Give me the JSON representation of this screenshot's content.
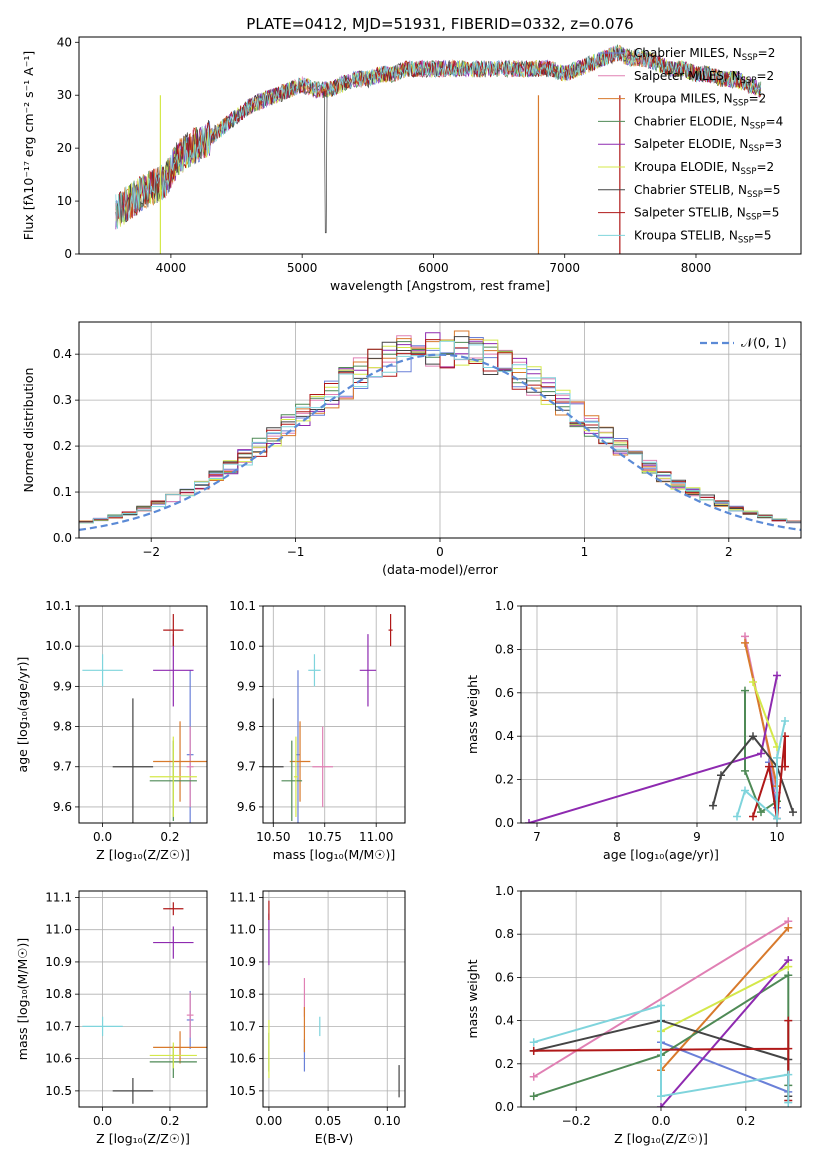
{
  "figure": {
    "title": "PLATE=0412, MJD=51931, FIBERID=0332, z=0.076"
  },
  "colors": {
    "Chabrier MILES": "#6a80d8",
    "Salpeter MILES": "#e080b4",
    "Kroupa MILES": "#d87a2c",
    "Chabrier ELODIE": "#4f8a56",
    "Salpeter ELODIE": "#8e2ab0",
    "Kroupa ELODIE": "#d4e84a",
    "Chabrier STELIB": "#444444",
    "Salpeter STELIB": "#b01818",
    "Kroupa STELIB": "#7fd4dc",
    "normal": "#5b8ad6"
  },
  "chart_data": [
    {
      "id": "spectrum",
      "type": "line",
      "title": "PLATE=0412, MJD=51931, FIBERID=0332, z=0.076",
      "xlabel": "wavelength [Angstrom, rest frame]",
      "ylabel": "Flux [fλ10⁻¹⁷ erg cm⁻² s⁻¹ A⁻¹]",
      "xlim": [
        3300,
        8800
      ],
      "ylim": [
        0,
        41
      ],
      "xticks": [
        4000,
        5000,
        6000,
        7000,
        8000
      ],
      "yticks": [
        0,
        10,
        20,
        30,
        40
      ],
      "grid": false,
      "legend": "upper right",
      "continuum": {
        "x": [
          3580,
          3700,
          3800,
          3900,
          3960,
          4050,
          4150,
          4300,
          4400,
          4500,
          4600,
          4700,
          4800,
          4900,
          5000,
          5100,
          5200,
          5300,
          5400,
          5500,
          5600,
          5700,
          5800,
          5900,
          6000,
          6100,
          6200,
          6300,
          6400,
          6500,
          6600,
          6700,
          6800,
          6900,
          7000,
          7100,
          7200,
          7300,
          7400,
          7500,
          7600,
          7700,
          7800,
          7900,
          8000,
          8100,
          8200,
          8300,
          8400,
          8500
        ],
        "y": [
          8,
          10,
          12,
          13,
          14,
          18,
          20,
          22,
          24,
          26,
          28,
          29,
          30,
          31,
          32,
          31,
          31,
          32,
          33,
          33,
          34,
          34,
          35,
          35,
          35,
          35,
          35,
          35,
          35,
          35,
          35,
          35,
          35,
          35,
          34,
          35,
          36,
          37,
          38,
          37,
          37,
          36,
          35,
          35,
          34,
          34,
          33,
          33,
          32,
          31
        ]
      },
      "series": [
        {
          "name": "Chabrier MILES, N_SSP=2",
          "label_pre": "Chabrier MILES, N",
          "label_sub": "SSP",
          "label_post": "=2"
        },
        {
          "name": "Salpeter MILES, N_SSP=2",
          "label_pre": "Salpeter MILES, N",
          "label_sub": "SSP",
          "label_post": "=2"
        },
        {
          "name": "Kroupa MILES, N_SSP=2",
          "label_pre": "Kroupa MILES, N",
          "label_sub": "SSP",
          "label_post": "=2"
        },
        {
          "name": "Chabrier ELODIE, N_SSP=4",
          "label_pre": "Chabrier ELODIE, N",
          "label_sub": "SSP",
          "label_post": "=4"
        },
        {
          "name": "Salpeter ELODIE, N_SSP=3",
          "label_pre": "Salpeter ELODIE, N",
          "label_sub": "SSP",
          "label_post": "=3"
        },
        {
          "name": "Kroupa ELODIE, N_SSP=2",
          "label_pre": "Kroupa ELODIE, N",
          "label_sub": "SSP",
          "label_post": "=2"
        },
        {
          "name": "Chabrier STELIB, N_SSP=5",
          "label_pre": "Chabrier STELIB, N",
          "label_sub": "SSP",
          "label_post": "=5"
        },
        {
          "name": "Salpeter STELIB, N_SSP=5",
          "label_pre": "Salpeter STELIB, N",
          "label_sub": "SSP",
          "label_post": "=5"
        },
        {
          "name": "Kroupa STELIB, N_SSP=5",
          "label_pre": "Kroupa STELIB, N",
          "label_sub": "SSP",
          "label_post": "=5"
        }
      ]
    },
    {
      "id": "residuals",
      "type": "line",
      "xlabel": "(data-model)/error",
      "ylabel": "Normed distribution",
      "xlim": [
        -2.5,
        2.5
      ],
      "ylim": [
        0,
        0.47
      ],
      "xticks": [
        -2,
        -1,
        0,
        1,
        2
      ],
      "yticks": [
        0.0,
        0.1,
        0.2,
        0.3,
        0.4
      ],
      "grid": true,
      "legend": "upper right",
      "legend_label": "𝒩(0, 1)",
      "bin_width": 0.1
    },
    {
      "id": "age-vs-Z",
      "type": "scatter",
      "xlabel": "Z [log₁₀(Z/Z☉)]",
      "ylabel": "age  [log₁₀(age/yr)]",
      "xlim": [
        -0.07,
        0.31
      ],
      "ylim": [
        9.56,
        10.1
      ],
      "xticks": [
        0.0,
        0.2
      ],
      "yticks": [
        9.6,
        9.7,
        9.8,
        9.9,
        10.0,
        10.1
      ],
      "grid": true,
      "points": [
        {
          "series": "Chabrier MILES",
          "x": 0.26,
          "xerr": 0.01,
          "y": 9.73,
          "yerr": 0.21
        },
        {
          "series": "Salpeter MILES",
          "x": 0.26,
          "xerr": 0.01,
          "y": 9.7,
          "yerr": 0.1
        },
        {
          "series": "Kroupa MILES",
          "x": 0.23,
          "xerr": 0.08,
          "y": 9.713,
          "yerr": 0.1
        },
        {
          "series": "Chabrier ELODIE",
          "x": 0.21,
          "xerr": 0.07,
          "y": 9.665,
          "yerr": 0.1
        },
        {
          "series": "Salpeter ELODIE",
          "x": 0.21,
          "xerr": 0.06,
          "y": 9.94,
          "yerr": 0.09
        },
        {
          "series": "Kroupa ELODIE",
          "x": 0.21,
          "xerr": 0.07,
          "y": 9.675,
          "yerr": 0.1
        },
        {
          "series": "Chabrier STELIB",
          "x": 0.09,
          "xerr": 0.06,
          "y": 9.7,
          "yerr": 0.17
        },
        {
          "series": "Salpeter STELIB",
          "x": 0.21,
          "xerr": 0.03,
          "y": 10.04,
          "yerr": 0.04
        },
        {
          "series": "Kroupa STELIB",
          "x": 0.0,
          "xerr": 0.06,
          "y": 9.94,
          "yerr": 0.04
        }
      ]
    },
    {
      "id": "age-vs-mass",
      "type": "scatter",
      "xlabel": "mass [log₁₀(M/M☉)]",
      "ylabel": "",
      "xlim": [
        10.45,
        11.14
      ],
      "ylim": [
        9.56,
        10.1
      ],
      "xticks": [
        10.5,
        10.75,
        11.0
      ],
      "yticks": [
        9.6,
        9.7,
        9.8,
        9.9,
        10.0,
        10.1
      ],
      "grid": true,
      "points": [
        {
          "series": "Chabrier MILES",
          "x": 10.62,
          "xerr": 0.01,
          "y": 9.73,
          "yerr": 0.21
        },
        {
          "series": "Salpeter MILES",
          "x": 10.74,
          "xerr": 0.05,
          "y": 9.7,
          "yerr": 0.1
        },
        {
          "series": "Kroupa MILES",
          "x": 10.63,
          "xerr": 0.05,
          "y": 9.713,
          "yerr": 0.1
        },
        {
          "series": "Chabrier ELODIE",
          "x": 10.59,
          "xerr": 0.05,
          "y": 9.665,
          "yerr": 0.1
        },
        {
          "series": "Salpeter ELODIE",
          "x": 10.96,
          "xerr": 0.04,
          "y": 9.94,
          "yerr": 0.09
        },
        {
          "series": "Kroupa ELODIE",
          "x": 10.61,
          "xerr": 0.01,
          "y": 9.675,
          "yerr": 0.1
        },
        {
          "series": "Chabrier STELIB",
          "x": 10.5,
          "xerr": 0.05,
          "y": 9.7,
          "yerr": 0.17
        },
        {
          "series": "Salpeter STELIB",
          "x": 11.07,
          "xerr": 0.01,
          "y": 10.04,
          "yerr": 0.04
        },
        {
          "series": "Kroupa STELIB",
          "x": 10.7,
          "xerr": 0.03,
          "y": 9.94,
          "yerr": 0.04
        }
      ]
    },
    {
      "id": "weight-vs-age",
      "type": "line",
      "xlabel": "age  [log₁₀(age/yr)]",
      "ylabel": "mass weight",
      "xlim": [
        6.8,
        10.3
      ],
      "ylim": [
        0,
        1
      ],
      "xticks": [
        7,
        8,
        9,
        10
      ],
      "yticks": [
        0.0,
        0.2,
        0.4,
        0.6,
        0.8,
        1.0
      ],
      "grid": true,
      "series": [
        {
          "series": "Chabrier MILES",
          "x": [
            9.9,
            10.0
          ],
          "y": [
            0.28,
            0.07
          ]
        },
        {
          "series": "Salpeter MILES",
          "x": [
            9.6,
            10.0
          ],
          "y": [
            0.86,
            0.14
          ]
        },
        {
          "series": "Kroupa MILES",
          "x": [
            9.6,
            10.0
          ],
          "y": [
            0.83,
            0.17
          ]
        },
        {
          "series": "Chabrier ELODIE",
          "x": [
            9.6,
            9.6,
            9.8,
            10.0
          ],
          "y": [
            0.61,
            0.24,
            0.05,
            0.1
          ]
        },
        {
          "series": "Salpeter ELODIE",
          "x": [
            6.9,
            9.8,
            10.0
          ],
          "y": [
            0.0,
            0.32,
            0.68
          ]
        },
        {
          "series": "Kroupa ELODIE",
          "x": [
            9.7,
            10.0
          ],
          "y": [
            0.65,
            0.35
          ]
        },
        {
          "series": "Chabrier STELIB",
          "x": [
            9.2,
            9.3,
            9.7,
            10.0,
            10.2
          ],
          "y": [
            0.08,
            0.22,
            0.4,
            0.26,
            0.05
          ]
        },
        {
          "series": "Salpeter STELIB",
          "x": [
            9.7,
            9.9,
            10.0,
            10.1,
            10.1
          ],
          "y": [
            0.03,
            0.26,
            0.02,
            0.4,
            0.26
          ]
        },
        {
          "series": "Kroupa STELIB",
          "x": [
            9.5,
            9.6,
            10.0,
            10.0,
            10.1
          ],
          "y": [
            0.03,
            0.15,
            0.02,
            0.3,
            0.47
          ]
        }
      ]
    },
    {
      "id": "mass-vs-Z",
      "type": "scatter",
      "xlabel": "Z [log₁₀(Z/Z☉)]",
      "ylabel": "mass [log₁₀(M/M☉)]",
      "xlim": [
        -0.07,
        0.31
      ],
      "ylim": [
        10.45,
        11.12
      ],
      "xticks": [
        0.0,
        0.2
      ],
      "yticks": [
        10.5,
        10.6,
        10.7,
        10.8,
        10.9,
        11.0,
        11.1
      ],
      "grid": true,
      "points": [
        {
          "series": "Chabrier MILES",
          "x": 0.26,
          "xerr": 0.01,
          "y": 10.72,
          "yerr": 0.09
        },
        {
          "series": "Salpeter MILES",
          "x": 0.26,
          "xerr": 0.01,
          "y": 10.735,
          "yerr": 0.07
        },
        {
          "series": "Kroupa MILES",
          "x": 0.23,
          "xerr": 0.08,
          "y": 10.635,
          "yerr": 0.05
        },
        {
          "series": "Chabrier ELODIE",
          "x": 0.21,
          "xerr": 0.07,
          "y": 10.59,
          "yerr": 0.05
        },
        {
          "series": "Salpeter ELODIE",
          "x": 0.21,
          "xerr": 0.06,
          "y": 10.96,
          "yerr": 0.05
        },
        {
          "series": "Kroupa ELODIE",
          "x": 0.21,
          "xerr": 0.07,
          "y": 10.61,
          "yerr": 0.04
        },
        {
          "series": "Chabrier STELIB",
          "x": 0.09,
          "xerr": 0.06,
          "y": 10.5,
          "yerr": 0.04
        },
        {
          "series": "Salpeter STELIB",
          "x": 0.21,
          "xerr": 0.03,
          "y": 11.065,
          "yerr": 0.02
        },
        {
          "series": "Kroupa STELIB",
          "x": 0.0,
          "xerr": 0.06,
          "y": 10.7,
          "yerr": 0.03
        }
      ]
    },
    {
      "id": "mass-vs-ebv",
      "type": "scatter",
      "xlabel": "E(B-V)",
      "ylabel": "",
      "xlim": [
        -0.005,
        0.115
      ],
      "ylim": [
        10.45,
        11.12
      ],
      "xticks": [
        0.0,
        0.05,
        0.1
      ],
      "yticks": [
        10.5,
        10.6,
        10.7,
        10.8,
        10.9,
        11.0,
        11.1
      ],
      "grid": true,
      "points": [
        {
          "series": "Chabrier MILES",
          "x": 0.03,
          "xerr": 0.0,
          "y": 10.61,
          "yerr": 0.05
        },
        {
          "series": "Salpeter MILES",
          "x": 0.03,
          "xerr": 0.0,
          "y": 10.79,
          "yerr": 0.06
        },
        {
          "series": "Kroupa MILES",
          "x": 0.03,
          "xerr": 0.0,
          "y": 10.69,
          "yerr": 0.07
        },
        {
          "series": "Chabrier ELODIE",
          "x": 0.0,
          "xerr": 0.0,
          "y": 10.62,
          "yerr": 0.06
        },
        {
          "series": "Salpeter ELODIE",
          "x": 0.0,
          "xerr": 0.0,
          "y": 10.97,
          "yerr": 0.08
        },
        {
          "series": "Kroupa ELODIE",
          "x": 0.0,
          "xerr": 0.0,
          "y": 10.63,
          "yerr": 0.09
        },
        {
          "series": "Chabrier STELIB",
          "x": 0.11,
          "xerr": 0.0,
          "y": 10.53,
          "yerr": 0.05
        },
        {
          "series": "Salpeter STELIB",
          "x": 0.0,
          "xerr": 0.0,
          "y": 11.06,
          "yerr": 0.03
        },
        {
          "series": "Kroupa STELIB",
          "x": 0.043,
          "xerr": 0.0,
          "y": 10.7,
          "yerr": 0.03
        }
      ]
    },
    {
      "id": "weight-vs-Z",
      "type": "line",
      "xlabel": "Z [log₁₀(Z/Z☉)]",
      "ylabel": "mass weight",
      "xlim": [
        -0.33,
        0.33
      ],
      "ylim": [
        0,
        1
      ],
      "xticks": [
        -0.2,
        0.0,
        0.2
      ],
      "yticks": [
        0.0,
        0.2,
        0.4,
        0.6,
        0.8,
        1.0
      ],
      "grid": true,
      "series": [
        {
          "series": "Chabrier MILES",
          "x": [
            0.0,
            0.3
          ],
          "y": [
            0.3,
            0.07
          ]
        },
        {
          "series": "Salpeter MILES",
          "x": [
            -0.3,
            0.3
          ],
          "y": [
            0.14,
            0.86
          ]
        },
        {
          "series": "Kroupa MILES",
          "x": [
            0.0,
            0.3
          ],
          "y": [
            0.17,
            0.83
          ]
        },
        {
          "series": "Chabrier ELODIE",
          "x": [
            -0.3,
            0.0,
            0.3,
            0.3
          ],
          "y": [
            0.05,
            0.24,
            0.61,
            0.1
          ]
        },
        {
          "series": "Salpeter ELODIE",
          "x": [
            0.0,
            0.3
          ],
          "y": [
            0.0,
            0.68
          ]
        },
        {
          "series": "Kroupa ELODIE",
          "x": [
            0.0,
            0.3
          ],
          "y": [
            0.35,
            0.65
          ]
        },
        {
          "series": "Chabrier STELIB",
          "x": [
            -0.3,
            0.0,
            0.3,
            0.3
          ],
          "y": [
            0.26,
            0.4,
            0.22,
            0.05
          ]
        },
        {
          "series": "Salpeter STELIB",
          "x": [
            -0.3,
            0.3,
            0.3,
            0.3
          ],
          "y": [
            0.26,
            0.27,
            0.4,
            0.03
          ]
        },
        {
          "series": "Kroupa STELIB",
          "x": [
            -0.3,
            0.0,
            0.0,
            0.3,
            0.3
          ],
          "y": [
            0.3,
            0.47,
            0.05,
            0.15,
            0.02
          ]
        }
      ]
    }
  ]
}
